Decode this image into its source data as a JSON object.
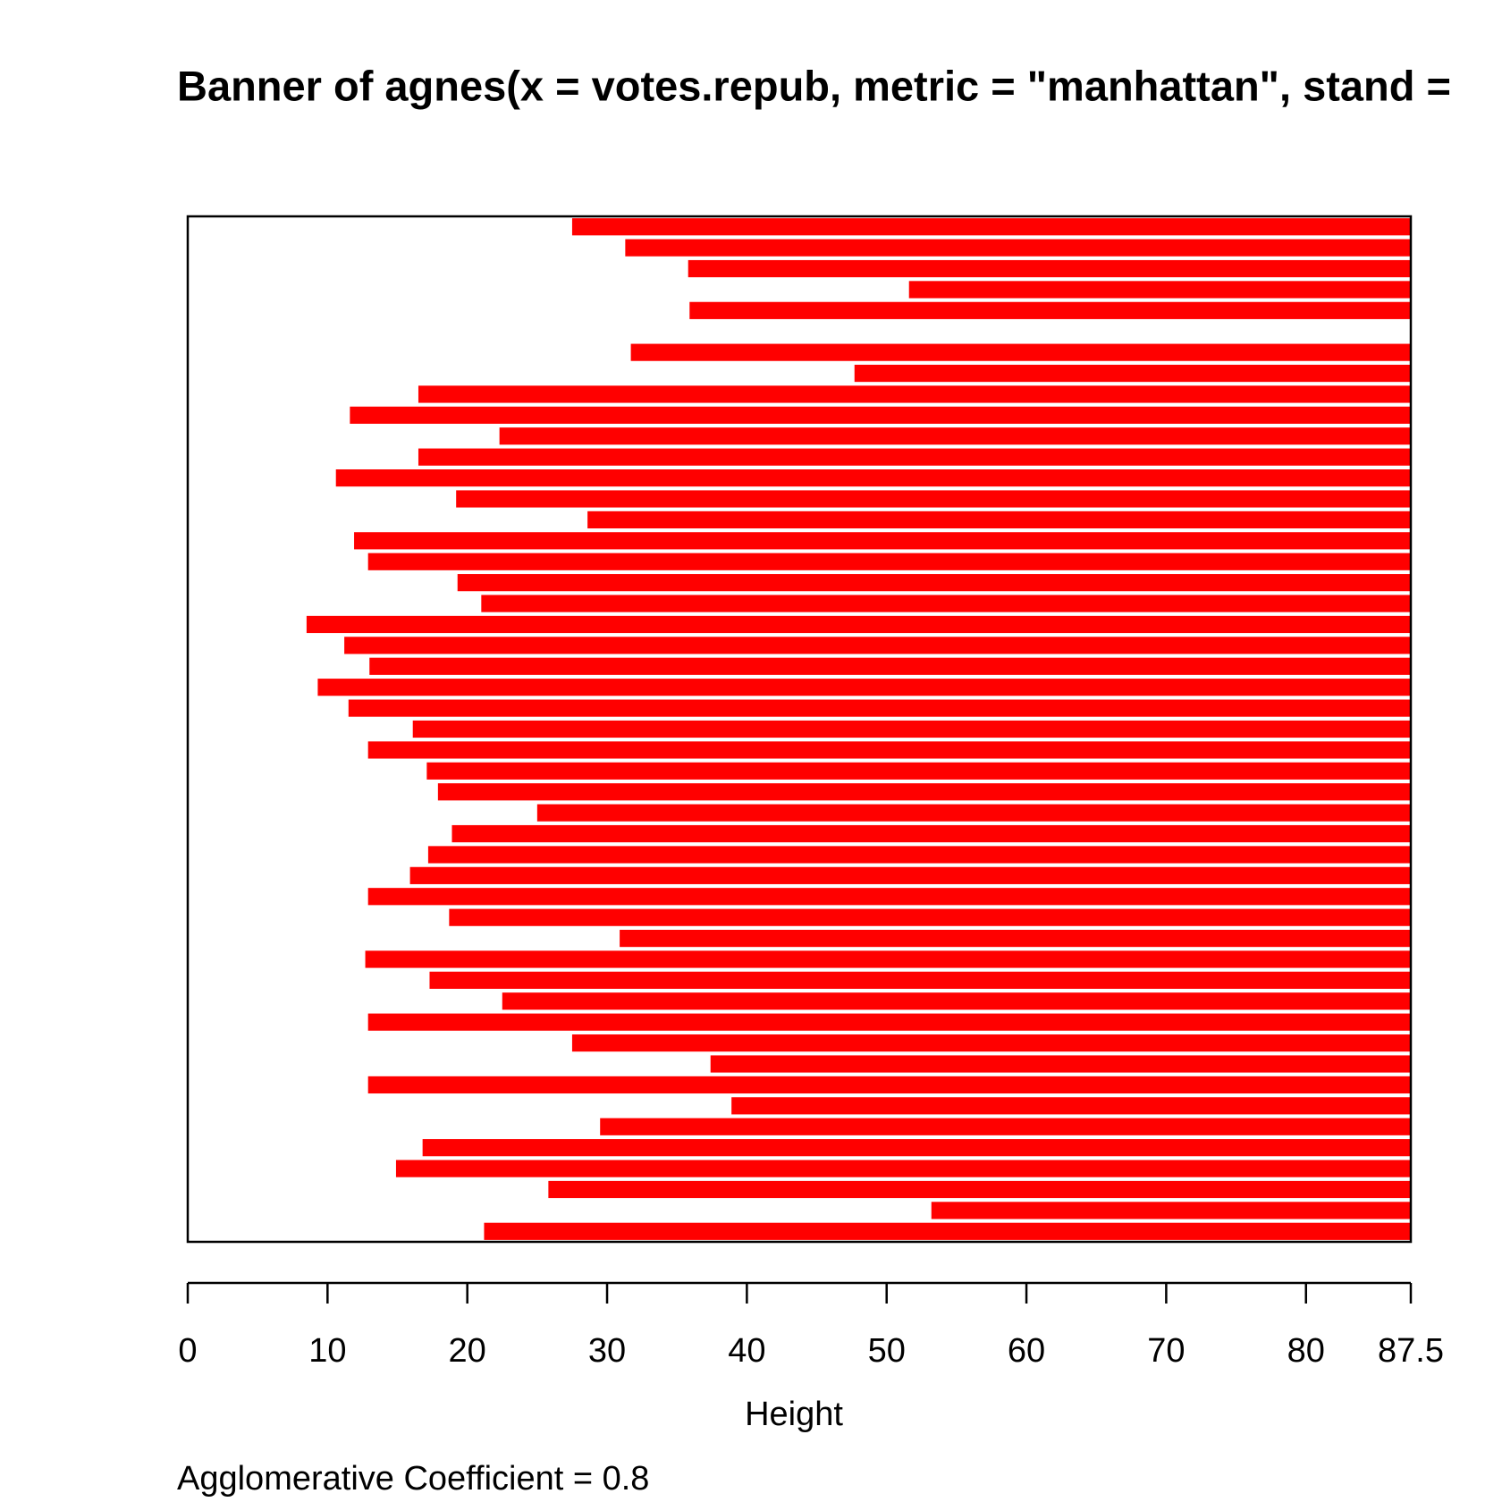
{
  "chart_data": {
    "type": "banner",
    "title": "Banner of  agnes(x = votes.repub, metric = \"manhattan\", stand =",
    "subtitle": "Agglomerative Coefficient =  0.8",
    "x_label": "Height",
    "color": "#ff0000",
    "xlim": [
      0,
      87.5
    ],
    "xticks": [
      0,
      10,
      20,
      30,
      40,
      50,
      60,
      70,
      80,
      87.5
    ],
    "values": [
      27.5,
      31.3,
      35.8,
      51.6,
      35.9,
      87.5,
      31.7,
      47.7,
      16.5,
      11.6,
      22.3,
      16.5,
      10.6,
      19.2,
      28.6,
      11.9,
      12.9,
      19.3,
      21.0,
      8.5,
      11.2,
      13.0,
      9.3,
      11.5,
      16.1,
      12.9,
      17.1,
      17.9,
      25.0,
      18.9,
      17.2,
      15.9,
      12.9,
      18.7,
      30.9,
      12.7,
      17.3,
      22.5,
      12.9,
      27.5,
      37.4,
      12.9,
      38.9,
      29.5,
      16.8,
      14.9,
      25.8,
      53.2,
      21.2
    ]
  }
}
